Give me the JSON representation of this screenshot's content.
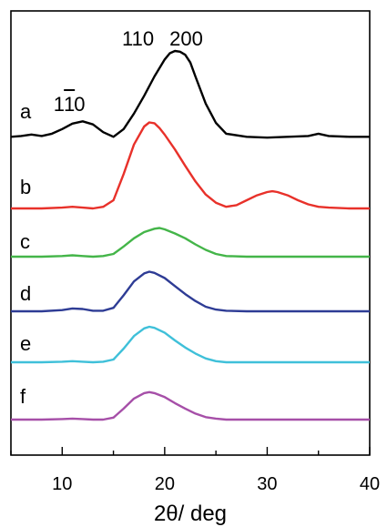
{
  "chart_data": {
    "type": "line",
    "title": "",
    "xlabel": "2θ/ deg",
    "ylabel": "",
    "xlim": [
      5,
      40
    ],
    "xticks": [
      10,
      20,
      30,
      40
    ],
    "grid": false,
    "legend": "none",
    "annotations": [
      {
        "text": "110",
        "x": 17.4
      },
      {
        "text": "200",
        "x": 22.1
      },
      {
        "text": "1",
        "x": 9.7
      },
      {
        "text": "1",
        "x": 10.7
      },
      {
        "text": "0",
        "x": 11.7
      }
    ],
    "series": [
      {
        "label": "a",
        "color": "#000000",
        "offset": 0.0,
        "x": [
          5,
          6,
          7,
          8,
          9,
          10,
          11,
          12,
          13,
          14,
          15,
          16,
          17,
          18,
          19,
          20,
          20.5,
          21,
          21.5,
          22,
          22.5,
          23,
          24,
          25,
          26,
          28,
          30,
          32,
          34,
          35,
          36,
          38,
          40
        ],
        "y": [
          0.02,
          0.03,
          0.05,
          0.03,
          0.06,
          0.12,
          0.19,
          0.22,
          0.18,
          0.08,
          0.02,
          0.12,
          0.32,
          0.55,
          0.8,
          1.02,
          1.1,
          1.13,
          1.12,
          1.08,
          0.98,
          0.8,
          0.45,
          0.2,
          0.06,
          0.02,
          0.01,
          0.02,
          0.03,
          0.06,
          0.03,
          0.02,
          0.02
        ]
      },
      {
        "label": "b",
        "color": "#e8312a",
        "offset": 0.0,
        "x": [
          5,
          8,
          10,
          11,
          12,
          13,
          14,
          15,
          16,
          17,
          18,
          18.5,
          19,
          19.5,
          20,
          21,
          22,
          23,
          24,
          25,
          26,
          27,
          28,
          29,
          30,
          30.5,
          31,
          32,
          33,
          34,
          35,
          36,
          38,
          40
        ],
        "y": [
          0.0,
          0.0,
          0.01,
          0.02,
          0.01,
          0.0,
          0.02,
          0.1,
          0.42,
          0.78,
          1.0,
          1.05,
          1.04,
          0.98,
          0.9,
          0.72,
          0.52,
          0.33,
          0.17,
          0.07,
          0.02,
          0.04,
          0.1,
          0.16,
          0.2,
          0.21,
          0.2,
          0.16,
          0.1,
          0.05,
          0.02,
          0.01,
          0.0,
          0.0
        ]
      },
      {
        "label": "c",
        "color": "#44b549",
        "offset": 0.0,
        "x": [
          5,
          8,
          10,
          11,
          12,
          13,
          14,
          15,
          16,
          17,
          18,
          19,
          19.5,
          20,
          21,
          22,
          23,
          24,
          25,
          26,
          28,
          30,
          32,
          35,
          38,
          40
        ],
        "y": [
          0.0,
          0.0,
          0.01,
          0.02,
          0.01,
          0.0,
          0.01,
          0.04,
          0.15,
          0.27,
          0.36,
          0.41,
          0.42,
          0.4,
          0.34,
          0.27,
          0.18,
          0.1,
          0.04,
          0.01,
          0.0,
          0.0,
          0.0,
          0.0,
          0.0,
          0.0
        ]
      },
      {
        "label": "d",
        "color": "#2e3c95",
        "offset": 0.0,
        "x": [
          5,
          8,
          10,
          11,
          12,
          13,
          14,
          15,
          16,
          17,
          18,
          18.5,
          19,
          20,
          21,
          22,
          23,
          24,
          25,
          26,
          28,
          30,
          32,
          35,
          38,
          40
        ],
        "y": [
          0.0,
          0.0,
          0.02,
          0.05,
          0.04,
          0.01,
          0.01,
          0.06,
          0.28,
          0.52,
          0.66,
          0.69,
          0.67,
          0.58,
          0.44,
          0.3,
          0.18,
          0.08,
          0.03,
          0.01,
          0.0,
          0.0,
          0.0,
          0.0,
          0.0,
          0.0
        ]
      },
      {
        "label": "e",
        "color": "#3fc0d9",
        "offset": 0.0,
        "x": [
          5,
          8,
          10,
          11,
          12,
          13,
          14,
          15,
          16,
          17,
          18,
          18.5,
          19,
          20,
          21,
          22,
          23,
          24,
          25,
          26,
          28,
          30,
          32,
          35,
          38,
          40
        ],
        "y": [
          0.0,
          0.0,
          0.01,
          0.02,
          0.01,
          0.0,
          0.01,
          0.05,
          0.25,
          0.48,
          0.62,
          0.65,
          0.63,
          0.54,
          0.4,
          0.27,
          0.16,
          0.07,
          0.02,
          0.0,
          0.0,
          0.0,
          0.0,
          0.0,
          0.0,
          0.0
        ]
      },
      {
        "label": "f",
        "color": "#a64fa8",
        "offset": 0.0,
        "x": [
          5,
          8,
          10,
          11,
          12,
          13,
          14,
          15,
          16,
          17,
          18,
          18.5,
          19,
          20,
          21,
          22,
          23,
          24,
          25,
          26,
          28,
          30,
          32,
          35,
          38,
          40
        ],
        "y": [
          0.0,
          0.0,
          0.01,
          0.02,
          0.01,
          0.0,
          0.0,
          0.04,
          0.22,
          0.42,
          0.53,
          0.55,
          0.53,
          0.45,
          0.33,
          0.22,
          0.12,
          0.05,
          0.02,
          0.0,
          0.0,
          0.0,
          0.0,
          0.0,
          0.0,
          0.0
        ]
      }
    ]
  }
}
